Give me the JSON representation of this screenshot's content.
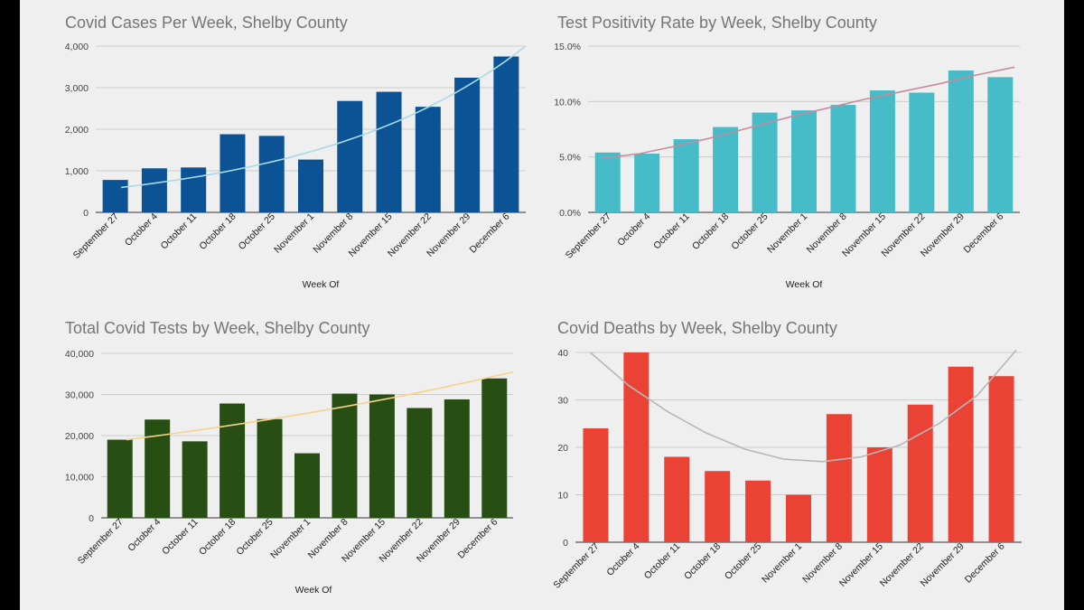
{
  "categories": [
    "September 27",
    "October 4",
    "October 11",
    "October 18",
    "October 25",
    "November 1",
    "November 8",
    "November 15",
    "November 22",
    "November 29",
    "December 6"
  ],
  "chart_data": [
    {
      "type": "bar",
      "title": "Covid Cases Per Week, Shelby County",
      "xlabel": "Week Of",
      "ylabel": "",
      "ylim": [
        0,
        4000
      ],
      "yticks": [
        0,
        1000,
        2000,
        3000,
        4000
      ],
      "ytick_labels": [
        "0",
        "1,000",
        "2,000",
        "3,000",
        "4,000"
      ],
      "values": [
        780,
        1060,
        1080,
        1880,
        1840,
        1270,
        2680,
        2900,
        2540,
        3240,
        3750
      ],
      "bar_color": "#0b5394",
      "trendline": {
        "type": "exponential",
        "color": "#a8dbe6",
        "start": 600,
        "end": 4000
      },
      "x_rotation": -45
    },
    {
      "type": "bar",
      "title": "Test Positivity Rate by Week, Shelby County",
      "xlabel": "Week Of",
      "ylabel": "",
      "ylim": [
        0,
        15
      ],
      "yticks": [
        0,
        5,
        10,
        15
      ],
      "ytick_labels": [
        "0.0%",
        "5.0%",
        "10.0%",
        "15.0%"
      ],
      "values": [
        5.4,
        5.3,
        6.6,
        7.7,
        9.0,
        9.2,
        9.7,
        11.0,
        10.8,
        12.8,
        12.2
      ],
      "bar_color": "#45bcc7",
      "trendline": {
        "type": "polynomial",
        "color": "#c98a9c",
        "points": [
          4.9,
          5.3,
          6.0,
          6.8,
          7.7,
          8.6,
          9.4,
          10.2,
          10.9,
          11.6,
          12.4,
          13.1
        ]
      },
      "x_rotation": -45
    },
    {
      "type": "bar",
      "title": "Total Covid Tests by Week, Shelby County",
      "xlabel": "Week Of",
      "ylabel": "",
      "ylim": [
        0,
        40000
      ],
      "yticks": [
        0,
        10000,
        20000,
        30000,
        40000
      ],
      "ytick_labels": [
        "0",
        "10,000",
        "20,000",
        "30,000",
        "40,000"
      ],
      "values": [
        19000,
        23900,
        18600,
        27800,
        24000,
        15700,
        30200,
        30000,
        26700,
        28800,
        33900
      ],
      "bar_color": "#274e13",
      "trendline": {
        "type": "exponential",
        "color": "#f6d388",
        "start": 19000,
        "end": 35500
      },
      "x_rotation": -45
    },
    {
      "type": "bar",
      "title": "Covid Deaths by Week, Shelby County",
      "xlabel": "",
      "ylabel": "",
      "ylim": [
        0,
        40
      ],
      "yticks": [
        0,
        10,
        20,
        30,
        40
      ],
      "ytick_labels": [
        "0",
        "10",
        "20",
        "30",
        "40"
      ],
      "values": [
        24,
        40,
        18,
        15,
        13,
        10,
        27,
        20,
        29,
        37,
        35
      ],
      "bar_color": "#ea4335",
      "trendline": {
        "type": "polynomial",
        "color": "#b7b7b7",
        "points": [
          40,
          33,
          27.5,
          23,
          19.6,
          17.5,
          17,
          18,
          20.5,
          25,
          31,
          40.5
        ]
      },
      "x_rotation": -45
    }
  ]
}
